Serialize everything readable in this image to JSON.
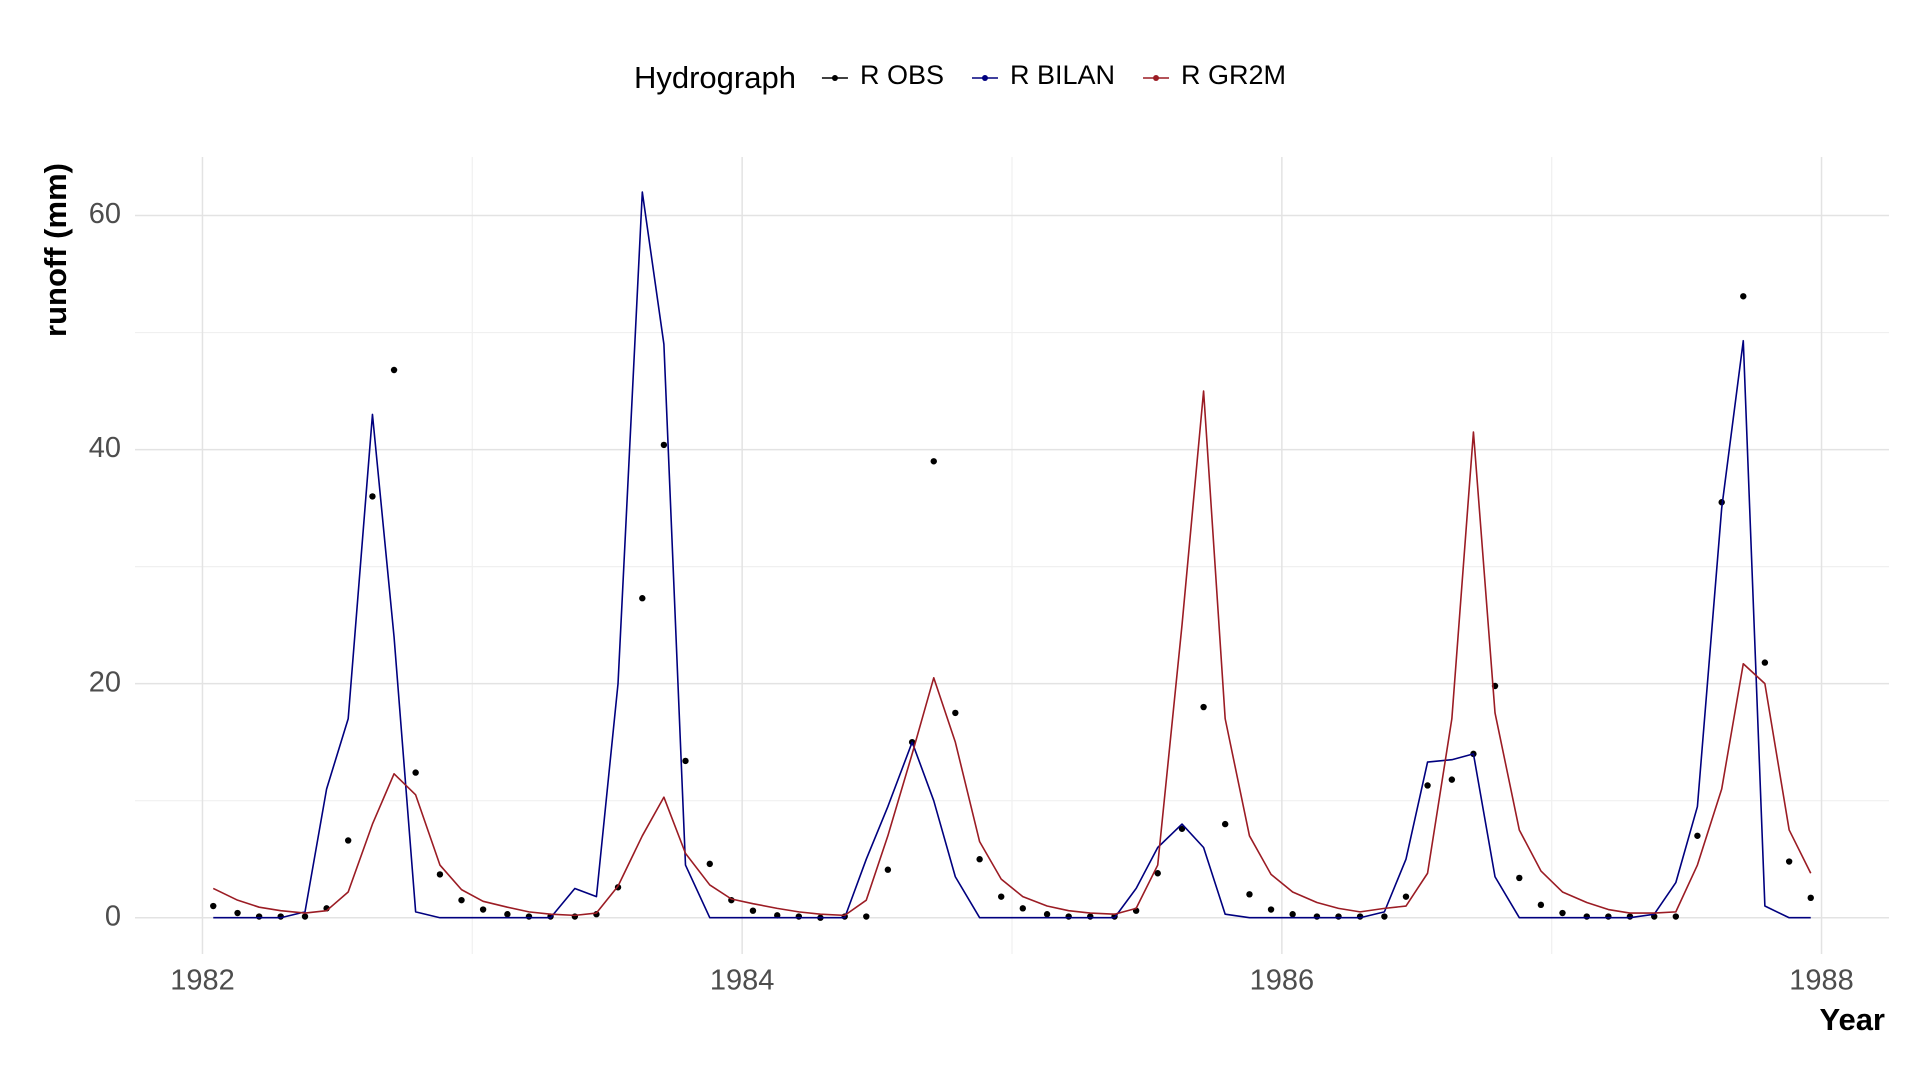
{
  "chart_data": {
    "type": "line",
    "x_label": "Year",
    "y_label": "runoff (mm)",
    "legend_title": "Hydrograph",
    "legend_position": "top",
    "grid": true,
    "xlim": [
      1981.75,
      1988.25
    ],
    "xticks": [
      1982,
      1984,
      1986,
      1988
    ],
    "ylim": [
      -3.1,
      65
    ],
    "yticks": [
      0,
      20,
      40,
      60
    ],
    "x": [
      1982.04,
      1982.13,
      1982.21,
      1982.29,
      1982.38,
      1982.46,
      1982.54,
      1982.63,
      1982.71,
      1982.79,
      1982.88,
      1982.96,
      1983.04,
      1983.13,
      1983.21,
      1983.29,
      1983.38,
      1983.46,
      1983.54,
      1983.63,
      1983.71,
      1983.79,
      1983.88,
      1983.96,
      1984.04,
      1984.13,
      1984.21,
      1984.29,
      1984.38,
      1984.46,
      1984.54,
      1984.63,
      1984.71,
      1984.79,
      1984.88,
      1984.96,
      1985.04,
      1985.13,
      1985.21,
      1985.29,
      1985.38,
      1985.46,
      1985.54,
      1985.63,
      1985.71,
      1985.79,
      1985.88,
      1985.96,
      1986.04,
      1986.13,
      1986.21,
      1986.29,
      1986.38,
      1986.46,
      1986.54,
      1986.63,
      1986.71,
      1986.79,
      1986.88,
      1986.96,
      1987.04,
      1987.13,
      1987.21,
      1987.29,
      1987.38,
      1987.46,
      1987.54,
      1987.63,
      1987.71,
      1987.79,
      1987.88,
      1987.96
    ],
    "series": [
      {
        "name": "R OBS",
        "color": "#000000",
        "style": "points",
        "values": [
          1.0,
          0.4,
          0.1,
          0.1,
          0.1,
          0.8,
          6.6,
          36,
          46.8,
          12.4,
          3.7,
          1.5,
          0.7,
          0.3,
          0.1,
          0.1,
          0.1,
          0.3,
          2.6,
          27.3,
          40.4,
          13.4,
          4.6,
          1.5,
          0.6,
          0.2,
          0.1,
          0,
          0.1,
          0.1,
          4.1,
          15,
          39,
          17.5,
          5,
          1.8,
          0.8,
          0.3,
          0.1,
          0.1,
          0.1,
          0.6,
          3.8,
          7.6,
          18,
          8,
          2,
          0.7,
          0.3,
          0.1,
          0.1,
          0.1,
          0.1,
          1.8,
          11.3,
          11.8,
          14,
          19.8,
          3.4,
          1.1,
          0.4,
          0.1,
          0.1,
          0.1,
          0.1,
          0.1,
          7,
          35.5,
          53.1,
          21.8,
          4.8,
          1.7
        ]
      },
      {
        "name": "R BILAN",
        "color": "#00007f",
        "style": "line",
        "values": [
          0,
          0,
          0,
          0,
          0.5,
          11,
          17,
          43,
          24,
          0.5,
          0,
          0,
          0,
          0,
          0,
          0,
          2.5,
          1.8,
          20,
          62,
          49,
          4.5,
          0,
          0,
          0,
          0,
          0,
          0,
          0,
          5,
          9.5,
          15,
          10,
          3.5,
          0,
          0,
          0,
          0,
          0,
          0,
          0,
          2.5,
          6,
          8,
          6,
          0.3,
          0,
          0,
          0,
          0,
          0,
          0,
          0.5,
          5,
          13.3,
          13.5,
          14,
          3.5,
          0,
          0,
          0,
          0,
          0,
          0,
          0.3,
          3,
          9.5,
          35,
          49.3,
          1,
          0,
          0
        ]
      },
      {
        "name": "R GR2M",
        "color": "#9b1c24",
        "style": "line",
        "values": [
          2.5,
          1.5,
          0.9,
          0.6,
          0.4,
          0.6,
          2.2,
          8,
          12.3,
          10.5,
          4.5,
          2.4,
          1.4,
          0.9,
          0.5,
          0.3,
          0.2,
          0.4,
          2.7,
          7,
          10.3,
          5.5,
          2.8,
          1.6,
          1.2,
          0.8,
          0.5,
          0.3,
          0.2,
          1.5,
          7,
          14,
          20.5,
          15,
          6.5,
          3.3,
          1.8,
          1.0,
          0.6,
          0.4,
          0.3,
          0.8,
          4.5,
          25,
          45,
          17,
          7,
          3.7,
          2.2,
          1.3,
          0.8,
          0.5,
          0.8,
          1,
          3.8,
          17,
          41.5,
          17.5,
          7.5,
          4,
          2.2,
          1.3,
          0.7,
          0.4,
          0.4,
          0.5,
          4.5,
          11,
          21.7,
          20,
          7.5,
          3.8
        ]
      }
    ]
  }
}
